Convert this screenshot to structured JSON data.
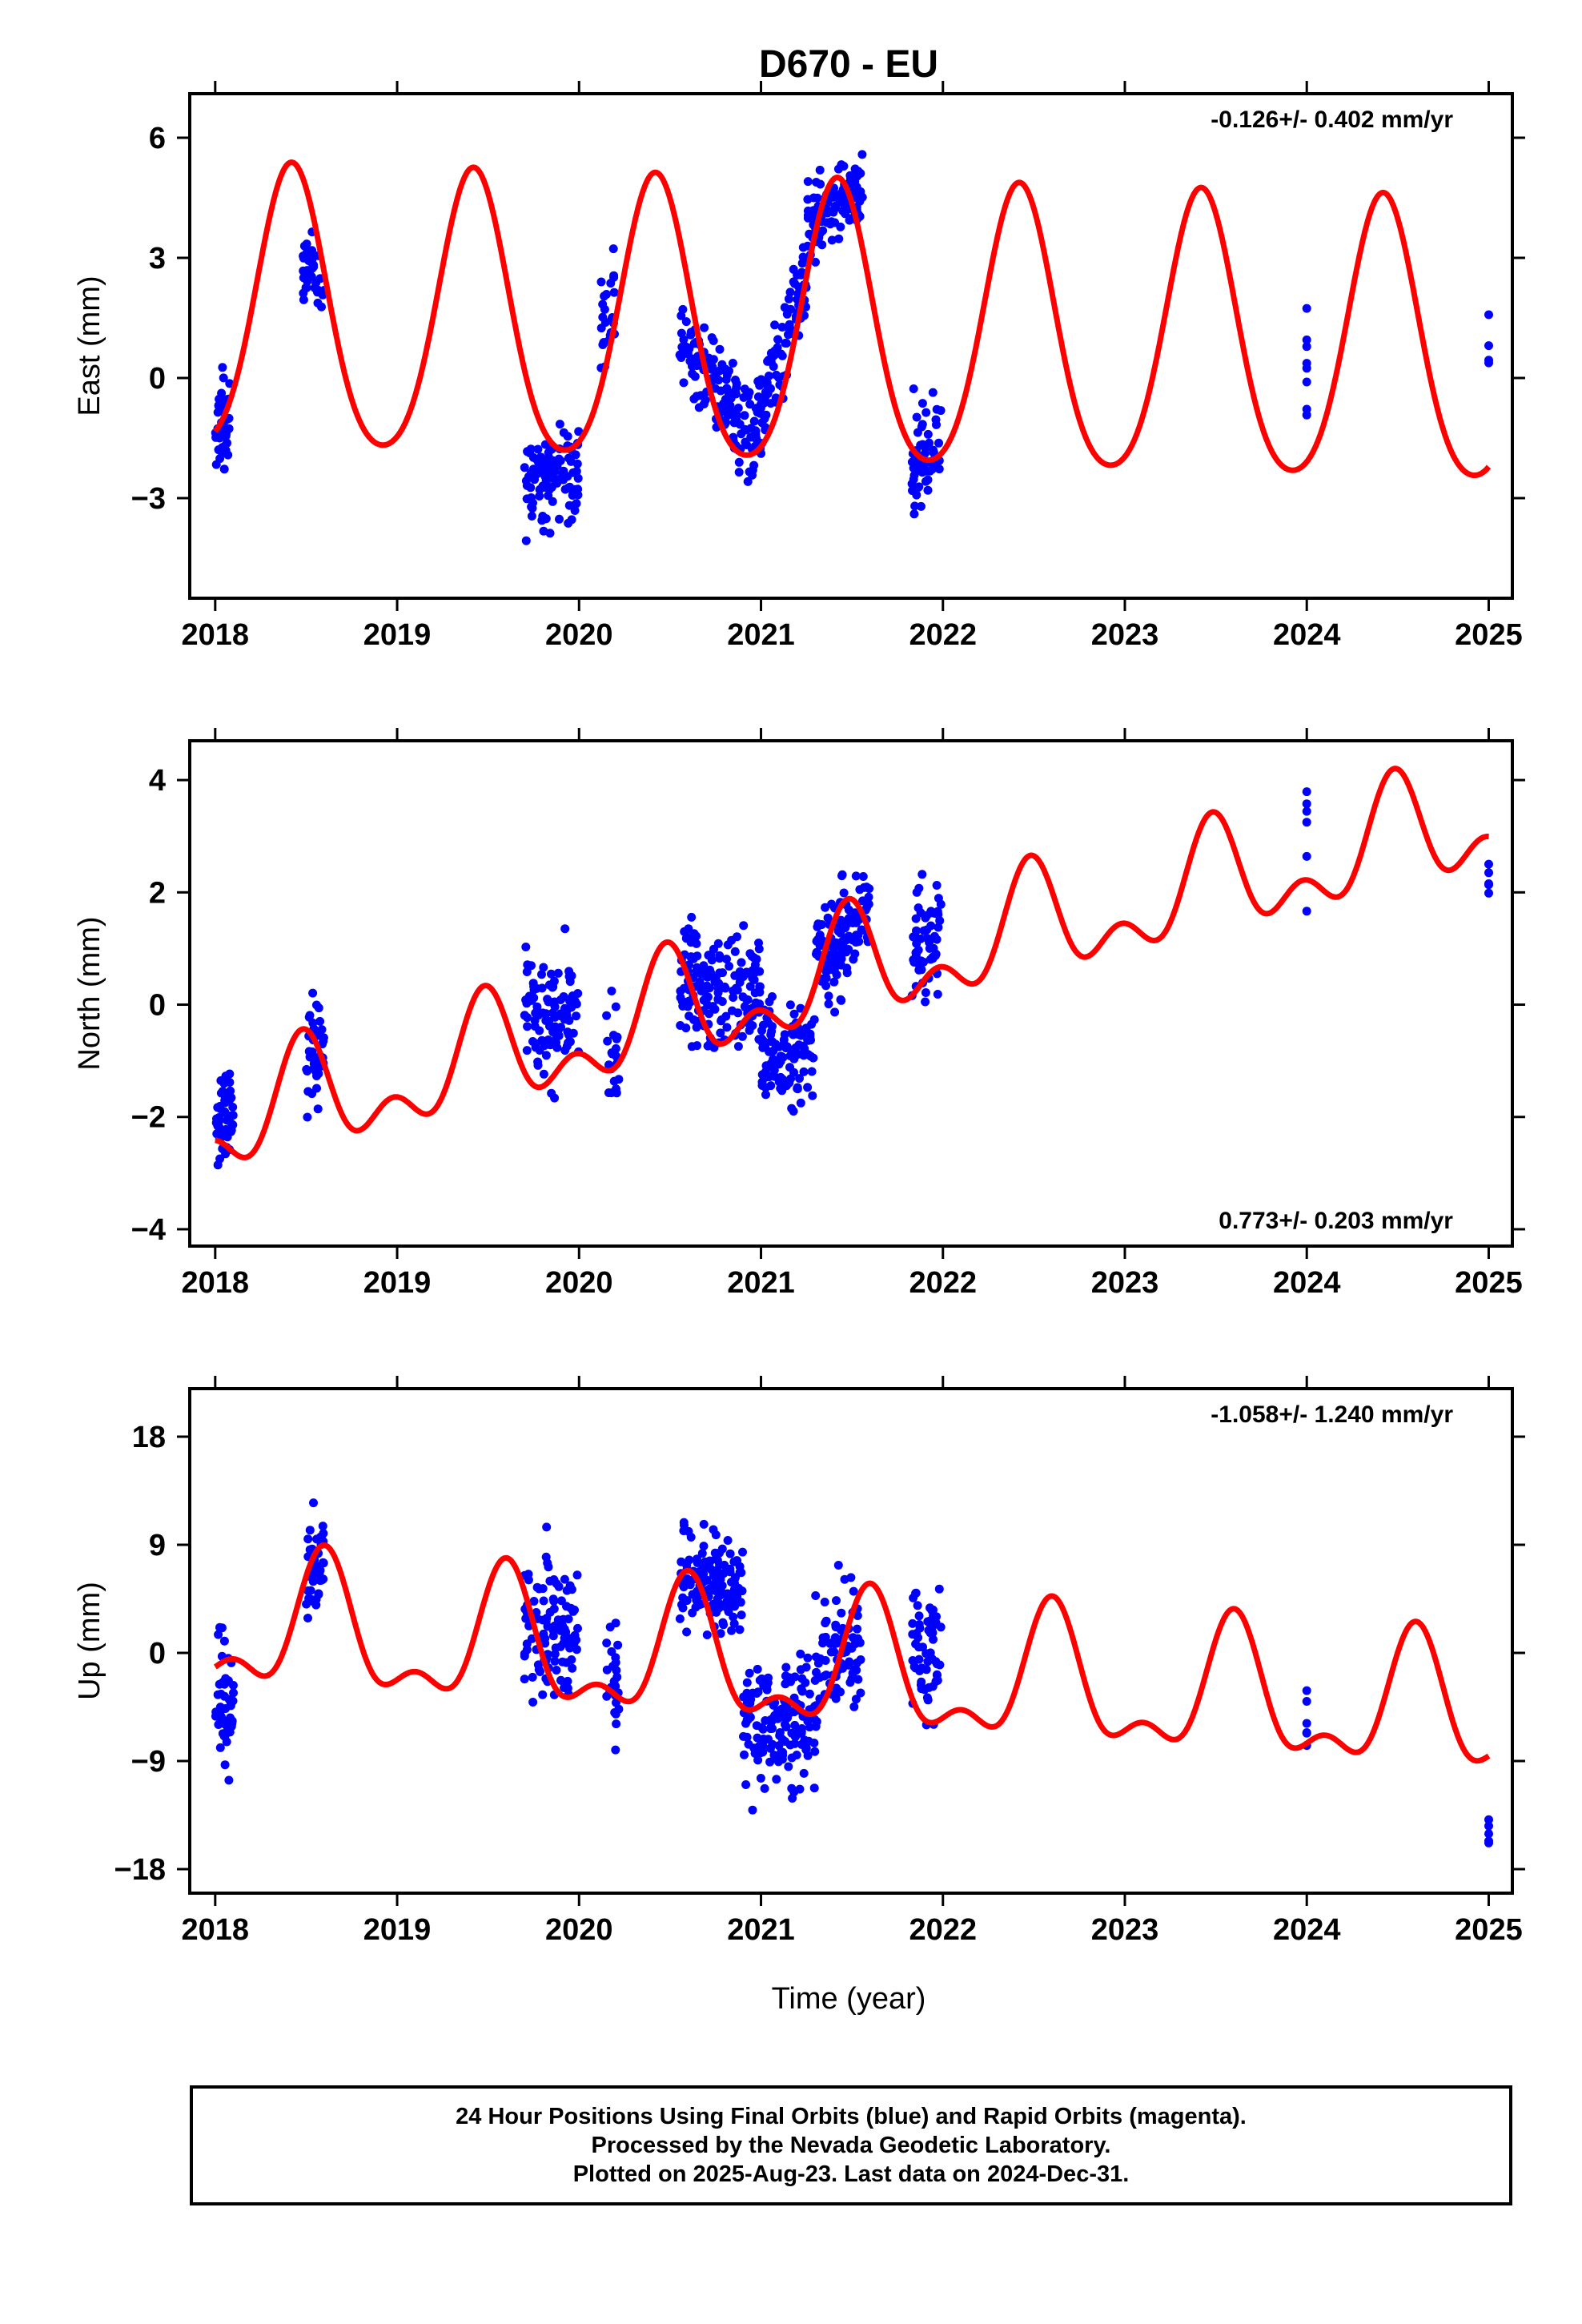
{
  "chart_data": {
    "type": "scatter",
    "title": "D670 - EU",
    "xlabel": "Time (year)",
    "xlim": [
      2017.86,
      2025.13
    ],
    "xticks": [
      2018,
      2019,
      2020,
      2021,
      2022,
      2023,
      2024,
      2025
    ],
    "colors": {
      "data": "#0000ff",
      "model": "#ff0000",
      "frame": "#000000"
    },
    "panels": [
      {
        "name": "east",
        "ylabel": "East (mm)",
        "ylim": [
          -5.5,
          7.1
        ],
        "yticks": [
          -3,
          0,
          3,
          6
        ],
        "ytick_labels": [
          "−3",
          "0",
          "3",
          "6"
        ],
        "rate_label": "-0.126+/- 0.402 mm/yr",
        "rate_position": "top-right",
        "model": {
          "offset": 1.05,
          "rate": -0.126,
          "ref": 2021.5,
          "annual_amp": 3.5,
          "annual_peak": 2018.42,
          "semi_amp": 0.45,
          "semi_peak": 2018.42
        },
        "clusters": [
          {
            "t": [
              2018.0,
              2018.08
            ],
            "center": -1.2,
            "trend": 4.5,
            "spread": 1.0,
            "n": 45
          },
          {
            "t": [
              2018.48,
              2018.6
            ],
            "center": 2.7,
            "trend": -3.0,
            "spread": 0.75,
            "n": 40
          },
          {
            "t": [
              2019.7,
              2020.0
            ],
            "center": -2.6,
            "trend": 0,
            "spread": 1.2,
            "n": 110
          },
          {
            "t": [
              2020.12,
              2020.2
            ],
            "center": 1.5,
            "trend": 8.0,
            "spread": 1.1,
            "n": 26
          },
          {
            "t": [
              2020.55,
              2020.95
            ],
            "center": -0.2,
            "trend": -5.5,
            "spread": 1.1,
            "n": 130
          },
          {
            "t": [
              2020.95,
              2021.25
            ],
            "center": 0.5,
            "trend": 14.0,
            "spread": 1.0,
            "n": 110
          },
          {
            "t": [
              2021.25,
              2021.56
            ],
            "center": 4.3,
            "trend": 2.0,
            "spread": 0.8,
            "n": 130
          },
          {
            "t": [
              2021.83,
              2021.99
            ],
            "center": -1.8,
            "trend": 3.0,
            "spread": 1.1,
            "n": 60
          },
          {
            "t": [
              2024.0,
              2024.0
            ],
            "center": 0.6,
            "trend": 0,
            "spread": 1.4,
            "n": 8
          },
          {
            "t": [
              2025.0,
              2025.0
            ],
            "center": 0.9,
            "trend": 0,
            "spread": 0.7,
            "n": 4
          }
        ]
      },
      {
        "name": "north",
        "ylabel": "North (mm)",
        "ylim": [
          -4.3,
          4.7
        ],
        "yticks": [
          -4,
          -2,
          0,
          2,
          4
        ],
        "ytick_labels": [
          "−4",
          "−2",
          "0",
          "2",
          "4"
        ],
        "rate_label": "0.773+/- 0.203 mm/yr",
        "rate_position": "bottom-right",
        "model": {
          "offset": 0.55,
          "rate": 0.773,
          "ref": 2021.5,
          "annual_amp": 0.8,
          "annual_peak": 2018.48,
          "semi_amp": 0.55,
          "semi_peak": 2018.48
        },
        "clusters": [
          {
            "t": [
              2018.0,
              2018.1
            ],
            "center": -2.0,
            "trend": 0,
            "spread": 0.8,
            "n": 55
          },
          {
            "t": [
              2018.5,
              2018.6
            ],
            "center": -0.8,
            "trend": 0,
            "spread": 0.9,
            "n": 45
          },
          {
            "t": [
              2019.7,
              2020.0
            ],
            "center": -0.3,
            "trend": 0,
            "spread": 1.0,
            "n": 100
          },
          {
            "t": [
              2020.15,
              2020.22
            ],
            "center": -0.8,
            "trend": 0,
            "spread": 0.9,
            "n": 22
          },
          {
            "t": [
              2020.55,
              2021.0
            ],
            "center": 0.3,
            "trend": 0,
            "spread": 1.0,
            "n": 170
          },
          {
            "t": [
              2021.0,
              2021.3
            ],
            "center": -0.9,
            "trend": 0,
            "spread": 0.9,
            "n": 110
          },
          {
            "t": [
              2021.3,
              2021.6
            ],
            "center": 1.2,
            "trend": 2.5,
            "spread": 0.9,
            "n": 120
          },
          {
            "t": [
              2021.83,
              2021.99
            ],
            "center": 1.3,
            "trend": 3.0,
            "spread": 1.0,
            "n": 60
          },
          {
            "t": [
              2024.0,
              2024.0
            ],
            "center": 2.8,
            "trend": 0,
            "spread": 1.2,
            "n": 6
          },
          {
            "t": [
              2025.0,
              2025.0
            ],
            "center": 2.1,
            "trend": 0,
            "spread": 0.9,
            "n": 5
          }
        ]
      },
      {
        "name": "up",
        "ylabel": "Up (mm)",
        "ylim": [
          -20,
          22
        ],
        "yticks": [
          -18,
          -9,
          0,
          9,
          18
        ],
        "ytick_labels": [
          "−18",
          "−9",
          "0",
          "9",
          "18"
        ],
        "rate_label": "-1.058+/- 1.240 mm/yr",
        "rate_position": "top-right",
        "model": {
          "offset": -1.6,
          "rate": -1.058,
          "ref": 2021.5,
          "annual_amp": 5.0,
          "annual_peak": 2018.6,
          "semi_amp": 2.5,
          "semi_peak": 2018.6
        },
        "clusters": [
          {
            "t": [
              2018.0,
              2018.1
            ],
            "center": -4.5,
            "trend": 0,
            "spread": 5.0,
            "n": 50
          },
          {
            "t": [
              2018.5,
              2018.6
            ],
            "center": 7.5,
            "trend": 0,
            "spread": 3.5,
            "n": 45
          },
          {
            "t": [
              2019.7,
              2020.0
            ],
            "center": 2.0,
            "trend": 0,
            "spread": 5.5,
            "n": 110
          },
          {
            "t": [
              2020.15,
              2020.22
            ],
            "center": -1.5,
            "trend": 0,
            "spread": 5.0,
            "n": 24
          },
          {
            "t": [
              2020.55,
              2020.9
            ],
            "center": 6.0,
            "trend": -6.0,
            "spread": 4.0,
            "n": 140
          },
          {
            "t": [
              2020.9,
              2021.3
            ],
            "center": -6.0,
            "trend": 0,
            "spread": 5.0,
            "n": 150
          },
          {
            "t": [
              2021.3,
              2021.55
            ],
            "center": 0.0,
            "trend": 0,
            "spread": 5.0,
            "n": 80
          },
          {
            "t": [
              2021.83,
              2021.99
            ],
            "center": 0.0,
            "trend": 0,
            "spread": 5.0,
            "n": 60
          },
          {
            "t": [
              2024.0,
              2024.0
            ],
            "center": -5.5,
            "trend": 0,
            "spread": 2.5,
            "n": 6
          },
          {
            "t": [
              2025.0,
              2025.0
            ],
            "center": -14.5,
            "trend": 0,
            "spread": 2.5,
            "n": 5
          }
        ]
      }
    ]
  },
  "footer": {
    "line1": "24 Hour Positions Using Final Orbits (blue) and Rapid Orbits (magenta).",
    "line2": "Processed by the Nevada Geodetic Laboratory.",
    "line3": "Plotted on 2025-Aug-23. Last data on 2024-Dec-31."
  }
}
